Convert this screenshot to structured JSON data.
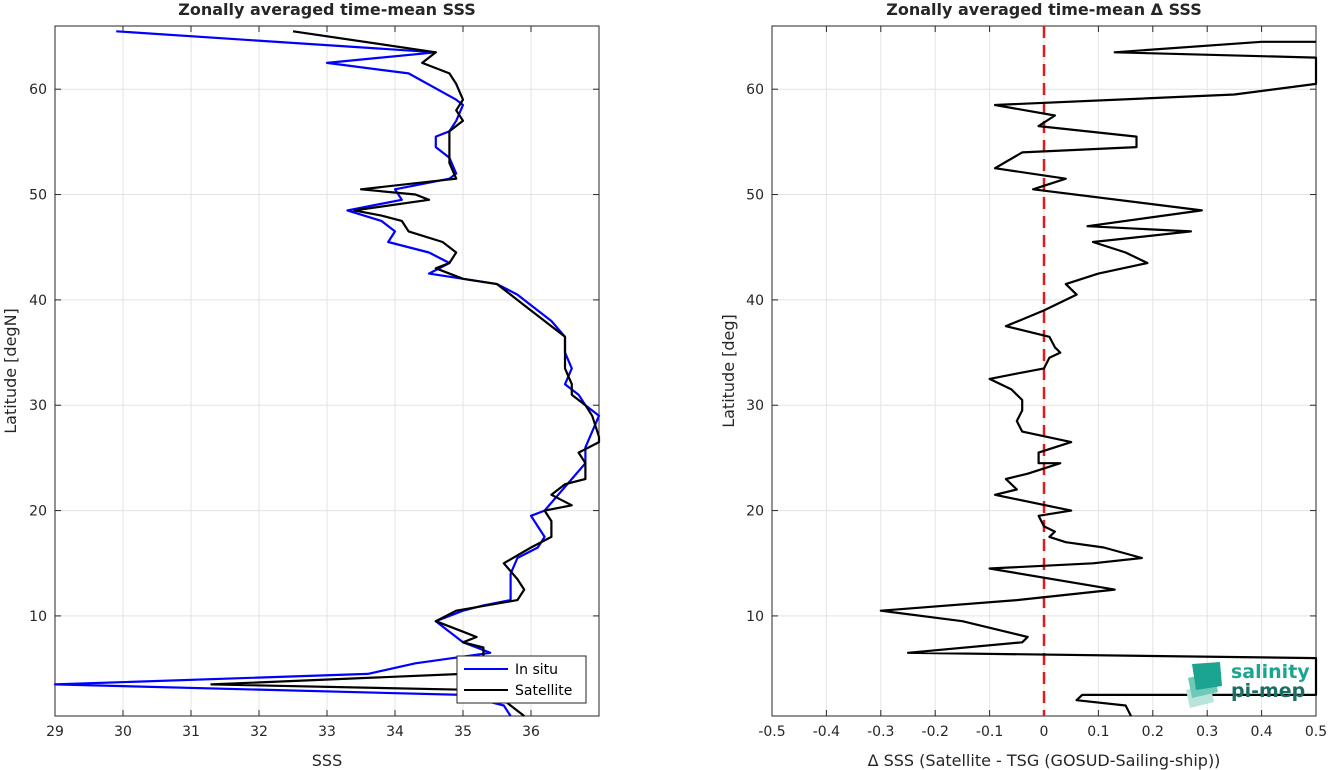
{
  "chart_data": [
    {
      "type": "line",
      "title": "Zonally averaged time-mean SSS",
      "xlabel": "SSS",
      "ylabel": "Latitude [degN]",
      "xlim": [
        29,
        37
      ],
      "ylim": [
        0.5,
        66
      ],
      "xticks": [
        29,
        30,
        31,
        32,
        33,
        34,
        35,
        36
      ],
      "yticks": [
        10,
        20,
        30,
        40,
        50,
        60
      ],
      "grid": true,
      "legend": "bottom-right",
      "series": [
        {
          "name": "In situ",
          "color": "#0000ff",
          "points": [
            [
              29.9,
              65.5
            ],
            [
              34.6,
              63.5
            ],
            [
              33.0,
              62.5
            ],
            [
              34.2,
              61.5
            ],
            [
              34.9,
              59.0
            ],
            [
              35.0,
              58.5
            ],
            [
              34.9,
              57.0
            ],
            [
              34.8,
              56.0
            ],
            [
              34.6,
              55.5
            ],
            [
              34.6,
              54.5
            ],
            [
              34.8,
              53.5
            ],
            [
              34.9,
              52.0
            ],
            [
              34.8,
              51.5
            ],
            [
              34.0,
              50.5
            ],
            [
              34.1,
              49.5
            ],
            [
              33.3,
              48.5
            ],
            [
              33.8,
              47.5
            ],
            [
              34.0,
              46.5
            ],
            [
              33.9,
              45.5
            ],
            [
              34.5,
              44.5
            ],
            [
              34.8,
              43.5
            ],
            [
              34.5,
              42.5
            ],
            [
              35.0,
              42.0
            ],
            [
              35.5,
              41.5
            ],
            [
              35.8,
              40.5
            ],
            [
              36.0,
              39.5
            ],
            [
              36.3,
              38.0
            ],
            [
              36.5,
              36.5
            ],
            [
              36.5,
              35.0
            ],
            [
              36.6,
              33.5
            ],
            [
              36.5,
              32.0
            ],
            [
              36.7,
              31.0
            ],
            [
              36.8,
              30.0
            ],
            [
              37.0,
              29.0
            ],
            [
              36.9,
              27.5
            ],
            [
              36.8,
              26.0
            ],
            [
              36.8,
              24.5
            ],
            [
              36.6,
              23.0
            ],
            [
              36.4,
              21.5
            ],
            [
              36.2,
              20.0
            ],
            [
              36.0,
              19.5
            ],
            [
              36.1,
              18.5
            ],
            [
              36.2,
              17.5
            ],
            [
              36.1,
              16.5
            ],
            [
              35.8,
              15.5
            ],
            [
              35.7,
              14.0
            ],
            [
              35.7,
              12.5
            ],
            [
              35.7,
              11.5
            ],
            [
              35.3,
              11.0
            ],
            [
              35.0,
              10.5
            ],
            [
              34.6,
              9.5
            ],
            [
              34.8,
              8.5
            ],
            [
              35.0,
              7.5
            ],
            [
              35.2,
              7.0
            ],
            [
              35.4,
              6.5
            ],
            [
              34.3,
              5.5
            ],
            [
              33.6,
              4.5
            ],
            [
              29.0,
              3.5
            ],
            [
              35.0,
              2.5
            ],
            [
              35.6,
              1.5
            ],
            [
              35.7,
              0.5
            ]
          ]
        },
        {
          "name": "Satellite",
          "color": "#000000",
          "points": [
            [
              32.5,
              65.5
            ],
            [
              34.6,
              63.5
            ],
            [
              34.4,
              62.5
            ],
            [
              34.8,
              61.5
            ],
            [
              34.9,
              60.5
            ],
            [
              35.0,
              59.0
            ],
            [
              34.9,
              58.0
            ],
            [
              35.0,
              57.0
            ],
            [
              34.8,
              56.0
            ],
            [
              34.8,
              54.5
            ],
            [
              34.8,
              53.0
            ],
            [
              34.9,
              51.5
            ],
            [
              33.5,
              50.5
            ],
            [
              34.3,
              50.0
            ],
            [
              34.5,
              49.5
            ],
            [
              33.4,
              48.5
            ],
            [
              33.8,
              48.0
            ],
            [
              34.1,
              47.5
            ],
            [
              34.2,
              46.5
            ],
            [
              34.7,
              45.5
            ],
            [
              34.9,
              44.5
            ],
            [
              34.8,
              43.5
            ],
            [
              34.6,
              43.0
            ],
            [
              35.0,
              42.0
            ],
            [
              35.5,
              41.5
            ],
            [
              35.7,
              40.5
            ],
            [
              35.9,
              39.5
            ],
            [
              36.2,
              38.0
            ],
            [
              36.5,
              36.5
            ],
            [
              36.5,
              35.0
            ],
            [
              36.5,
              33.5
            ],
            [
              36.6,
              32.0
            ],
            [
              36.6,
              31.0
            ],
            [
              36.8,
              30.0
            ],
            [
              36.9,
              29.0
            ],
            [
              37.0,
              27.0
            ],
            [
              37.0,
              26.5
            ],
            [
              36.7,
              25.5
            ],
            [
              36.8,
              24.5
            ],
            [
              36.8,
              23.0
            ],
            [
              36.5,
              22.5
            ],
            [
              36.3,
              21.5
            ],
            [
              36.6,
              20.5
            ],
            [
              36.2,
              20.0
            ],
            [
              36.3,
              19.0
            ],
            [
              36.3,
              17.5
            ],
            [
              36.0,
              16.5
            ],
            [
              35.6,
              15.0
            ],
            [
              35.8,
              13.5
            ],
            [
              35.9,
              12.5
            ],
            [
              35.8,
              11.5
            ],
            [
              34.9,
              10.5
            ],
            [
              34.6,
              9.5
            ],
            [
              35.0,
              8.5
            ],
            [
              35.2,
              8.0
            ],
            [
              35.0,
              7.5
            ],
            [
              35.3,
              7.0
            ],
            [
              35.3,
              6.0
            ],
            [
              35.0,
              5.5
            ],
            [
              35.0,
              4.5
            ],
            [
              31.3,
              3.5
            ],
            [
              35.0,
              3.0
            ],
            [
              35.6,
              2.0
            ],
            [
              35.7,
              1.5
            ],
            [
              35.9,
              0.5
            ]
          ]
        }
      ]
    },
    {
      "type": "line",
      "title": "Zonally averaged time-mean Δ SSS",
      "xlabel": "Δ SSS (Satellite - TSG (GOSUD-Sailing-ship))",
      "ylabel": "Latitude [deg]",
      "xlim": [
        -0.5,
        0.5
      ],
      "ylim": [
        0.5,
        66
      ],
      "xticks": [
        -0.5,
        -0.4,
        -0.3,
        -0.2,
        -0.1,
        0,
        0.1,
        0.2,
        0.3,
        0.4,
        0.5
      ],
      "yticks": [
        10,
        20,
        30,
        40,
        50,
        60
      ],
      "grid": true,
      "zero_line": {
        "x": 0,
        "color": "#e31a1c",
        "style": "dashed"
      },
      "series": [
        {
          "color": "#000000",
          "points": [
            [
              0.5,
              64.5
            ],
            [
              0.4,
              64.5
            ],
            [
              0.13,
              63.5
            ],
            [
              0.5,
              63.0
            ],
            [
              0.5,
              60.5
            ],
            [
              0.35,
              59.5
            ],
            [
              -0.09,
              58.5
            ],
            [
              0.02,
              57.5
            ],
            [
              -0.01,
              56.5
            ],
            [
              0.17,
              55.5
            ],
            [
              0.17,
              54.5
            ],
            [
              -0.04,
              54.0
            ],
            [
              -0.09,
              52.5
            ],
            [
              0.04,
              51.5
            ],
            [
              -0.02,
              50.5
            ],
            [
              0.29,
              48.5
            ],
            [
              0.08,
              47.0
            ],
            [
              0.27,
              46.5
            ],
            [
              0.09,
              45.5
            ],
            [
              0.15,
              44.5
            ],
            [
              0.19,
              43.5
            ],
            [
              0.1,
              42.5
            ],
            [
              0.04,
              41.5
            ],
            [
              0.06,
              40.5
            ],
            [
              0.0,
              39.0
            ],
            [
              -0.07,
              37.5
            ],
            [
              0.01,
              36.5
            ],
            [
              0.02,
              35.5
            ],
            [
              0.03,
              35.0
            ],
            [
              0.01,
              34.5
            ],
            [
              0.0,
              33.5
            ],
            [
              -0.05,
              33.0
            ],
            [
              -0.1,
              32.5
            ],
            [
              -0.06,
              31.5
            ],
            [
              -0.04,
              30.5
            ],
            [
              -0.04,
              29.5
            ],
            [
              -0.05,
              28.5
            ],
            [
              -0.04,
              27.5
            ],
            [
              0.05,
              26.5
            ],
            [
              -0.01,
              25.5
            ],
            [
              -0.01,
              24.5
            ],
            [
              0.03,
              24.5
            ],
            [
              -0.03,
              23.5
            ],
            [
              -0.07,
              23.0
            ],
            [
              -0.05,
              22.0
            ],
            [
              -0.09,
              21.5
            ],
            [
              0.05,
              20.0
            ],
            [
              -0.01,
              19.5
            ],
            [
              0.0,
              18.5
            ],
            [
              0.02,
              18.0
            ],
            [
              0.01,
              17.5
            ],
            [
              0.04,
              17.0
            ],
            [
              0.11,
              16.5
            ],
            [
              0.18,
              15.5
            ],
            [
              0.09,
              15.0
            ],
            [
              -0.1,
              14.5
            ],
            [
              0.13,
              12.5
            ],
            [
              -0.05,
              11.5
            ],
            [
              -0.3,
              10.5
            ],
            [
              -0.15,
              9.5
            ],
            [
              -0.03,
              8.0
            ],
            [
              -0.04,
              7.5
            ],
            [
              -0.25,
              6.5
            ],
            [
              0.5,
              6.0
            ],
            [
              0.5,
              2.5
            ],
            [
              0.07,
              2.5
            ],
            [
              0.06,
              2.0
            ],
            [
              0.15,
              1.5
            ],
            [
              0.16,
              0.5
            ]
          ]
        }
      ]
    }
  ],
  "legend": {
    "items": [
      {
        "label": "In situ",
        "color": "#0000ff"
      },
      {
        "label": "Satellite",
        "color": "#000000"
      }
    ]
  },
  "logo": {
    "line1": "salinity",
    "line2": "pi-mep"
  }
}
